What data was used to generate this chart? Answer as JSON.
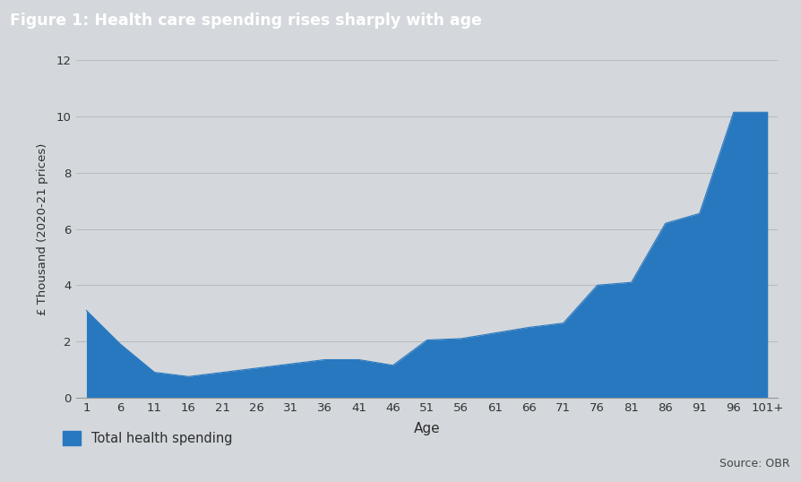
{
  "title": "Figure 1: Health care spending rises sharply with age",
  "title_bg_color": "#465568",
  "title_text_color": "#ffffff",
  "xlabel": "Age",
  "ylabel": "£ Thousand (2020-21 prices)",
  "source_text": "Source: OBR",
  "legend_label": "Total health spending",
  "fill_color": "#2878c0",
  "background_color": "#d4d8dc",
  "plot_bg_color": "#d4d8dc",
  "grid_color": "#b8bcc0",
  "ylim": [
    0,
    12
  ],
  "yticks": [
    0,
    2,
    4,
    6,
    8,
    10,
    12
  ],
  "x_labels": [
    "1",
    "6",
    "11",
    "16",
    "21",
    "26",
    "31",
    "36",
    "41",
    "46",
    "51",
    "56",
    "61",
    "66",
    "71",
    "76",
    "81",
    "86",
    "91",
    "96",
    "101+"
  ],
  "values": [
    3.1,
    1.9,
    0.9,
    0.75,
    0.9,
    1.05,
    1.2,
    1.35,
    1.35,
    1.15,
    2.05,
    2.1,
    2.3,
    2.5,
    2.65,
    4.0,
    4.1,
    6.2,
    6.55,
    10.15,
    10.15
  ]
}
